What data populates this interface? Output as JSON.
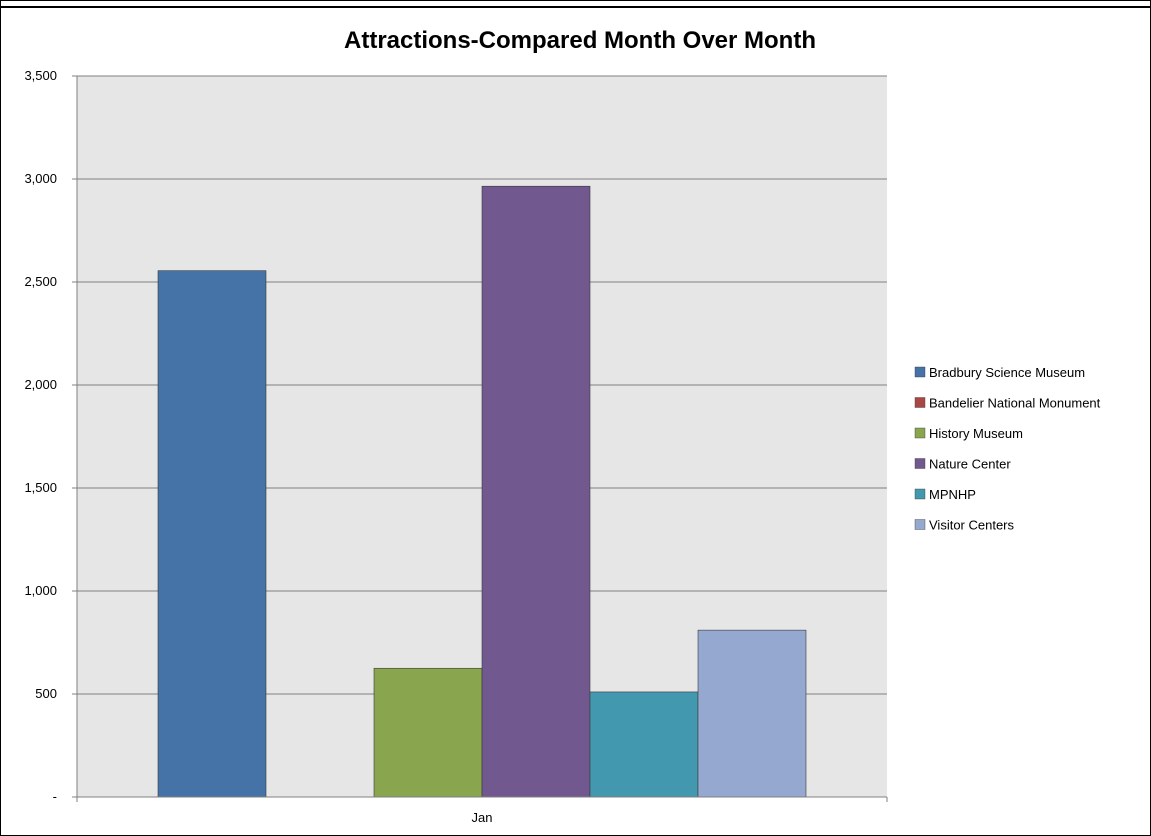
{
  "chart_data": {
    "type": "bar",
    "title": "Attractions-Compared Month Over Month",
    "categories": [
      "Jan"
    ],
    "ylim": [
      0,
      3500
    ],
    "yticks": [
      0,
      500,
      1000,
      1500,
      2000,
      2500,
      3000,
      3500
    ],
    "ytick_labels": [
      "-",
      "500",
      "1,000",
      "1,500",
      "2,000",
      "2,500",
      "3,000",
      "3,500"
    ],
    "grid": true,
    "legend_position": "right",
    "series": [
      {
        "name": "Bradbury Science Museum",
        "values": [
          2555
        ],
        "color": "#4572a7"
      },
      {
        "name": "Bandelier National Monument",
        "values": [
          0
        ],
        "color": "#aa4643"
      },
      {
        "name": "History Museum",
        "values": [
          625
        ],
        "color": "#89a54e"
      },
      {
        "name": "Nature Center",
        "values": [
          2965
        ],
        "color": "#71588f"
      },
      {
        "name": "MPNHP",
        "values": [
          510
        ],
        "color": "#4198af"
      },
      {
        "name": "Visitor Centers",
        "values": [
          810
        ],
        "color": "#95a8d0"
      }
    ]
  },
  "colors": {
    "plot_background": "#e6e6e6",
    "gridline": "#808080",
    "axis": "#808080"
  }
}
